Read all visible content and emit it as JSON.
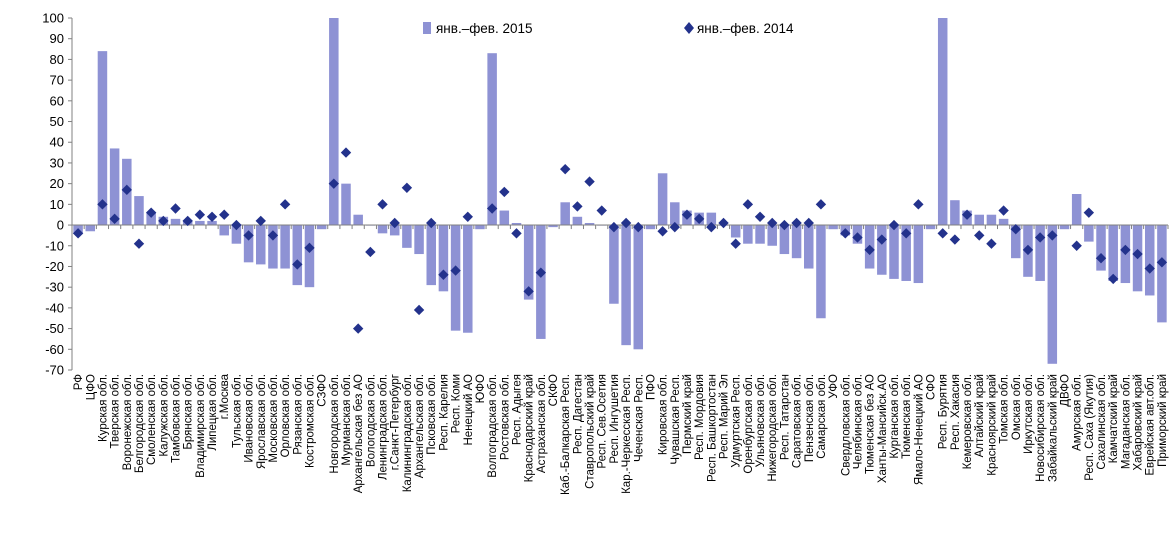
{
  "chart_data": {
    "type": "bar",
    "ylim": [
      -70,
      100
    ],
    "yticks": [
      -70,
      -60,
      -50,
      -40,
      -30,
      -20,
      -10,
      0,
      10,
      20,
      30,
      40,
      50,
      60,
      70,
      80,
      90,
      100
    ],
    "grid": false,
    "legend_position": "top",
    "categories": [
      "РФ",
      "ЦФО",
      "Курская обл.",
      "Тверская обл.",
      "Воронежская обл.",
      "Белгородская обл.",
      "Смоленская обл.",
      "Калужская обл.",
      "Тамбовская обл.",
      "Брянская обл.",
      "Владимирская обл.",
      "Липецкая обл.",
      "г.Москва",
      "Тульская обл.",
      "Ивановская обл.",
      "Ярославская обл.",
      "Московская обл.",
      "Орловская обл.",
      "Рязанская обл.",
      "Костромская обл.",
      "СЗФО",
      "Новгородская обл.",
      "Мурманская обл.",
      "Архангельская без АО",
      "Вологодская обл.",
      "Ленинградская обл.",
      "г.Санкт-Петербург",
      "Калининградская обл.",
      "Архангельская обл.",
      "Псковская обл.",
      "Респ. Карелия",
      "Респ. Коми",
      "Ненецкий АО",
      "ЮФО",
      "Волгоградская обл.",
      "Ростовская обл.",
      "Респ. Адыгея",
      "Краснодарский край",
      "Астраханская обл.",
      "СКФО",
      "Каб.-Балкарская Респ.",
      "Респ. Дагестан",
      "Ставропольский край",
      "Респ. Сев.Осетия",
      "Респ. Ингушетия",
      "Кар.-Черкесская Респ.",
      "Чеченская Респ.",
      "ПФО",
      "Кировская обл.",
      "Чувашская Респ.",
      "Пермский край",
      "Респ. Мордовия",
      "Респ. Башкортостан",
      "Респ. Марий Эл",
      "Удмуртская Респ.",
      "Оренбургская обл.",
      "Ульяновская обл.",
      "Нижегородская обл.",
      "Респ. Татарстан",
      "Саратовская обл.",
      "Пензенская обл.",
      "Самарская обл.",
      "УФО",
      "Свердловская обл.",
      "Челябинская обл.",
      "Тюменская без АО",
      "Ханты-Мансийск.АО",
      "Курганская обл.",
      "Тюменская обл.",
      "Ямало-Ненецкий АО",
      "СФО",
      "Респ. Бурятия",
      "Респ. Хакасия",
      "Кемеровская обл.",
      "Алтайский край",
      "Красноярский край",
      "Томская обл.",
      "Омская обл.",
      "Иркутская обл.",
      "Новосибирская обл.",
      "Забайкальский край",
      "ДВФО",
      "Амурская обл.",
      "Респ. Саха (Якутия)",
      "Сахалинская обл.",
      "Камчатский край",
      "Магаданская обл.",
      "Хабаровский край",
      "Еврейская авт.обл.",
      "Приморский край"
    ],
    "series": [
      {
        "name": "янв.–фев. 2015",
        "kind": "bar",
        "color": "#8e92d4",
        "values": [
          -4,
          -3,
          84,
          37,
          32,
          14,
          6,
          4,
          3,
          2,
          2,
          2,
          -5,
          -9,
          -18,
          -19,
          -21,
          -21,
          -29,
          -30,
          -2,
          100,
          20,
          5,
          0,
          -4,
          -5,
          -11,
          -14,
          -29,
          -32,
          -51,
          -52,
          -2,
          83,
          7,
          1,
          -36,
          -55,
          -1,
          11,
          4,
          1,
          0,
          -38,
          -58,
          -60,
          -2,
          25,
          11,
          7,
          6,
          6,
          0,
          -6,
          -9,
          -9,
          -10,
          -14,
          -16,
          -21,
          -45,
          -2,
          -5,
          -9,
          -21,
          -24,
          -26,
          -27,
          -28,
          -2,
          100,
          12,
          7,
          5,
          5,
          3,
          -16,
          -25,
          -27,
          -67,
          -2,
          15,
          -8,
          -22,
          -27,
          -28,
          -32,
          -34,
          -47
        ]
      },
      {
        "name": "янв.–фев. 2014",
        "kind": "marker",
        "color": "#23328c",
        "values": [
          -4,
          null,
          10,
          3,
          17,
          -9,
          6,
          2,
          8,
          2,
          5,
          4,
          5,
          0,
          -5,
          2,
          -5,
          10,
          -19,
          -11,
          null,
          20,
          35,
          -50,
          -13,
          10,
          1,
          18,
          -41,
          1,
          -24,
          -22,
          4,
          null,
          8,
          16,
          -4,
          -32,
          -23,
          null,
          27,
          9,
          21,
          7,
          -1,
          1,
          -1,
          null,
          -3,
          -1,
          5,
          3,
          -1,
          1,
          -9,
          10,
          4,
          1,
          0,
          1,
          1,
          10,
          null,
          -4,
          -6,
          -12,
          -7,
          0,
          -4,
          10,
          null,
          -4,
          -7,
          5,
          -5,
          -9,
          7,
          -2,
          -12,
          -6,
          -5,
          null,
          -10,
          6,
          -16,
          -26,
          -12,
          -14,
          -21,
          -18
        ]
      }
    ]
  }
}
